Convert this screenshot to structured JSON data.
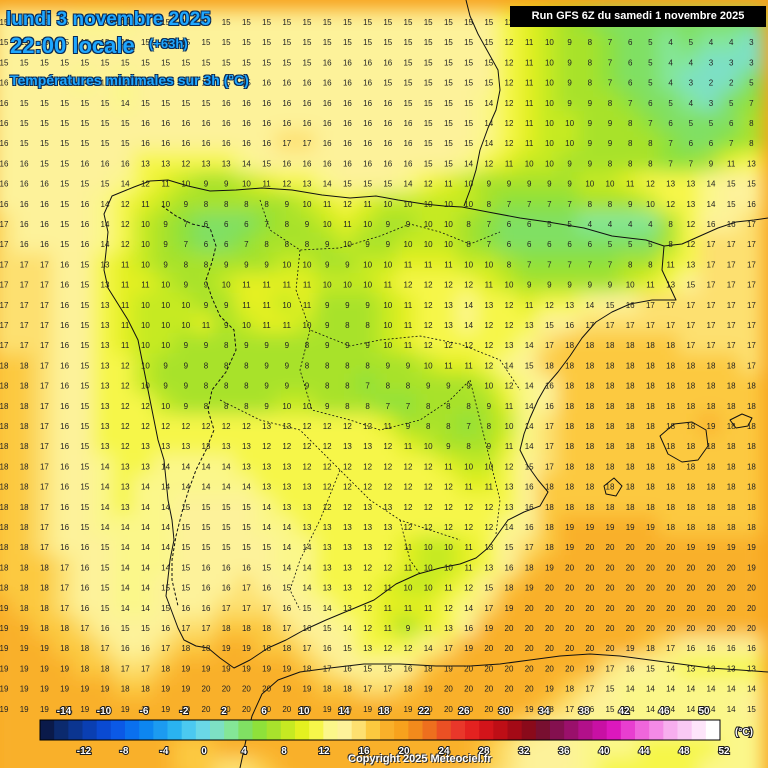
{
  "header": {
    "date": "lundi 3 novembre 2025",
    "time": "22:00 locale",
    "offset": "(+63h)",
    "parameter": "Températures minimales sur 3h (°C)"
  },
  "run_info": "Run GFS 6Z du samedi 1 novembre 2025",
  "copyright": "Copyright 2025 Meteociel.fr",
  "legend": {
    "unit": "(°C)",
    "top_ticks": [
      "-14",
      "-10",
      "-6",
      "-2",
      "2",
      "6",
      "10",
      "14",
      "18",
      "22",
      "26",
      "30",
      "34",
      "38",
      "42",
      "46",
      "50"
    ],
    "bottom_ticks": [
      "-12",
      "-8",
      "-4",
      "0",
      "4",
      "8",
      "12",
      "16",
      "20",
      "24",
      "28",
      "32",
      "36",
      "40",
      "44",
      "48",
      "52"
    ],
    "colors": [
      "#0a1a4a",
      "#0b2a6e",
      "#0b3590",
      "#0a3fb2",
      "#0a4ad2",
      "#0b59e6",
      "#0a70ee",
      "#0d86f0",
      "#1c9bf0",
      "#2ab3f0",
      "#4bc9f0",
      "#6ad8e6",
      "#7de0c4",
      "#84e697",
      "#80e063",
      "#8ee13a",
      "#a8e22c",
      "#c6ea22",
      "#e4f020",
      "#f6f64a",
      "#fbf78a",
      "#fdf29a",
      "#fde070",
      "#fcc93f",
      "#f9b02a",
      "#f7a21d",
      "#f28a1c",
      "#ee6f1e",
      "#eb5024",
      "#e9372a",
      "#e32220",
      "#d3141a",
      "#be0e16",
      "#a40a16",
      "#8a0a1a",
      "#780f30",
      "#84104f",
      "#9a106b",
      "#b2108a",
      "#c810a4",
      "#dc18bd",
      "#e83ed0",
      "#ef66dc",
      "#f48ae6",
      "#f7aeee",
      "#f9c9f4",
      "#fde5fa",
      "#ffffff"
    ]
  },
  "grid_values": [
    [
      15,
      15,
      15,
      15,
      14,
      14,
      14,
      15,
      15,
      15,
      15,
      15,
      15,
      15,
      15,
      15,
      15,
      15,
      15,
      15,
      15,
      15,
      15,
      15,
      15,
      12,
      11,
      10,
      9,
      7,
      6,
      5,
      5,
      5,
      6,
      5,
      5,
      5
    ],
    [
      15,
      15,
      15,
      15,
      15,
      15,
      15,
      15,
      15,
      15,
      15,
      15,
      15,
      15,
      15,
      15,
      15,
      15,
      15,
      15,
      15,
      15,
      15,
      15,
      15,
      12,
      11,
      10,
      9,
      8,
      7,
      6,
      5,
      4,
      5,
      4,
      4,
      3
    ],
    [
      15,
      15,
      15,
      15,
      15,
      15,
      15,
      15,
      15,
      15,
      15,
      15,
      15,
      15,
      15,
      15,
      16,
      16,
      16,
      16,
      15,
      15,
      15,
      15,
      15,
      12,
      11,
      10,
      9,
      8,
      7,
      6,
      5,
      4,
      4,
      3,
      3,
      3
    ],
    [
      16,
      15,
      15,
      15,
      14,
      15,
      14,
      15,
      15,
      15,
      15,
      15,
      15,
      16,
      16,
      16,
      16,
      16,
      16,
      15,
      15,
      15,
      15,
      15,
      15,
      12,
      11,
      10,
      9,
      8,
      7,
      6,
      5,
      4,
      3,
      2,
      2,
      5
    ],
    [
      16,
      15,
      15,
      15,
      15,
      15,
      14,
      15,
      15,
      15,
      15,
      16,
      16,
      16,
      16,
      16,
      16,
      16,
      16,
      16,
      15,
      15,
      15,
      15,
      14,
      12,
      11,
      10,
      9,
      9,
      8,
      7,
      6,
      5,
      4,
      3,
      5,
      7
    ],
    [
      16,
      15,
      15,
      15,
      15,
      15,
      15,
      16,
      16,
      16,
      16,
      16,
      16,
      16,
      16,
      16,
      16,
      16,
      16,
      16,
      16,
      15,
      15,
      15,
      14,
      12,
      11,
      10,
      10,
      9,
      9,
      8,
      7,
      6,
      5,
      5,
      6,
      8
    ],
    [
      16,
      15,
      15,
      15,
      15,
      15,
      15,
      16,
      16,
      16,
      16,
      16,
      16,
      16,
      17,
      17,
      16,
      16,
      16,
      16,
      16,
      15,
      15,
      15,
      14,
      12,
      11,
      10,
      10,
      9,
      9,
      8,
      8,
      7,
      6,
      6,
      7,
      8
    ],
    [
      16,
      16,
      15,
      15,
      16,
      16,
      16,
      13,
      13,
      12,
      13,
      13,
      14,
      15,
      16,
      16,
      16,
      16,
      16,
      16,
      16,
      15,
      15,
      14,
      12,
      11,
      10,
      10,
      9,
      9,
      8,
      8,
      8,
      7,
      7,
      9,
      11,
      13
    ],
    [
      16,
      16,
      16,
      15,
      15,
      15,
      14,
      12,
      11,
      10,
      9,
      9,
      10,
      11,
      12,
      13,
      14,
      15,
      15,
      15,
      14,
      12,
      11,
      10,
      9,
      9,
      9,
      9,
      9,
      10,
      10,
      11,
      12,
      13,
      13,
      14,
      15,
      15
    ],
    [
      16,
      16,
      16,
      15,
      16,
      14,
      12,
      11,
      10,
      9,
      8,
      8,
      8,
      8,
      9,
      10,
      11,
      12,
      11,
      10,
      10,
      10,
      10,
      10,
      8,
      7,
      7,
      7,
      7,
      8,
      8,
      9,
      10,
      12,
      13,
      14,
      15,
      16
    ],
    [
      17,
      16,
      16,
      15,
      16,
      14,
      12,
      10,
      9,
      7,
      6,
      6,
      6,
      7,
      8,
      9,
      10,
      11,
      10,
      9,
      9,
      10,
      10,
      8,
      7,
      6,
      6,
      5,
      5,
      4,
      4,
      4,
      4,
      8,
      12,
      16,
      16,
      17
    ],
    [
      17,
      16,
      16,
      15,
      16,
      14,
      12,
      10,
      9,
      7,
      6,
      6,
      7,
      8,
      8,
      8,
      9,
      10,
      9,
      9,
      10,
      10,
      10,
      8,
      7,
      6,
      6,
      6,
      6,
      6,
      5,
      5,
      5,
      8,
      12,
      17,
      17,
      17
    ],
    [
      17,
      17,
      17,
      16,
      15,
      13,
      11,
      10,
      9,
      8,
      8,
      9,
      9,
      9,
      10,
      10,
      9,
      9,
      10,
      10,
      11,
      11,
      11,
      10,
      10,
      8,
      7,
      7,
      7,
      7,
      7,
      8,
      8,
      11,
      13,
      17,
      17,
      17
    ],
    [
      17,
      17,
      17,
      16,
      15,
      13,
      11,
      11,
      10,
      9,
      9,
      10,
      11,
      11,
      11,
      11,
      10,
      10,
      10,
      11,
      12,
      12,
      12,
      12,
      11,
      10,
      9,
      9,
      9,
      9,
      9,
      10,
      11,
      13,
      15,
      17,
      17,
      17
    ],
    [
      17,
      17,
      17,
      16,
      15,
      13,
      11,
      10,
      10,
      10,
      9,
      9,
      11,
      11,
      10,
      11,
      9,
      9,
      9,
      10,
      11,
      12,
      13,
      14,
      13,
      12,
      11,
      12,
      13,
      14,
      15,
      16,
      17,
      17,
      17,
      17,
      17,
      17
    ],
    [
      17,
      17,
      17,
      16,
      15,
      13,
      11,
      10,
      10,
      10,
      11,
      9,
      10,
      11,
      11,
      10,
      9,
      8,
      8,
      10,
      11,
      12,
      13,
      14,
      12,
      12,
      13,
      15,
      16,
      17,
      17,
      17,
      17,
      17,
      17,
      17,
      17,
      17
    ],
    [
      17,
      17,
      17,
      16,
      15,
      13,
      11,
      10,
      10,
      9,
      9,
      8,
      9,
      9,
      9,
      8,
      9,
      9,
      9,
      10,
      11,
      12,
      12,
      12,
      12,
      13,
      14,
      17,
      18,
      18,
      18,
      18,
      18,
      18,
      17,
      17,
      17,
      17
    ],
    [
      18,
      18,
      17,
      16,
      15,
      13,
      12,
      10,
      9,
      9,
      8,
      8,
      8,
      9,
      9,
      8,
      8,
      8,
      8,
      9,
      9,
      10,
      11,
      11,
      12,
      14,
      15,
      18,
      18,
      18,
      18,
      18,
      18,
      18,
      18,
      18,
      18,
      17
    ],
    [
      18,
      18,
      17,
      16,
      15,
      13,
      12,
      10,
      9,
      9,
      8,
      8,
      8,
      9,
      9,
      9,
      8,
      8,
      7,
      8,
      8,
      9,
      9,
      9,
      10,
      12,
      14,
      16,
      18,
      18,
      18,
      18,
      18,
      18,
      18,
      18,
      18,
      18
    ],
    [
      18,
      18,
      17,
      16,
      15,
      13,
      12,
      12,
      10,
      9,
      8,
      8,
      8,
      9,
      10,
      10,
      9,
      8,
      8,
      7,
      7,
      8,
      8,
      8,
      9,
      11,
      14,
      16,
      18,
      18,
      18,
      18,
      18,
      18,
      18,
      18,
      18,
      18
    ],
    [
      18,
      18,
      17,
      16,
      15,
      13,
      12,
      12,
      12,
      12,
      12,
      12,
      12,
      13,
      13,
      12,
      12,
      12,
      12,
      11,
      9,
      8,
      8,
      7,
      8,
      10,
      14,
      17,
      18,
      18,
      18,
      18,
      18,
      18,
      18,
      19,
      18,
      18
    ],
    [
      18,
      18,
      17,
      16,
      15,
      13,
      12,
      13,
      13,
      13,
      13,
      13,
      13,
      12,
      12,
      12,
      12,
      13,
      13,
      12,
      11,
      10,
      9,
      8,
      9,
      11,
      14,
      17,
      18,
      18,
      18,
      18,
      18,
      18,
      18,
      18,
      18,
      18
    ],
    [
      18,
      18,
      17,
      16,
      15,
      14,
      13,
      13,
      14,
      14,
      14,
      14,
      13,
      13,
      13,
      12,
      12,
      12,
      12,
      12,
      12,
      12,
      11,
      10,
      10,
      12,
      15,
      17,
      18,
      18,
      18,
      18,
      18,
      18,
      18,
      18,
      18,
      18
    ],
    [
      18,
      18,
      17,
      16,
      15,
      14,
      13,
      14,
      14,
      14,
      14,
      14,
      14,
      13,
      13,
      13,
      12,
      12,
      12,
      12,
      12,
      12,
      12,
      11,
      11,
      13,
      16,
      18,
      18,
      18,
      18,
      18,
      18,
      18,
      18,
      18,
      18,
      18
    ],
    [
      18,
      18,
      17,
      16,
      15,
      14,
      13,
      14,
      14,
      15,
      15,
      15,
      15,
      14,
      13,
      13,
      12,
      12,
      13,
      13,
      12,
      12,
      12,
      12,
      12,
      13,
      16,
      18,
      18,
      18,
      18,
      18,
      18,
      18,
      18,
      18,
      18,
      18
    ],
    [
      18,
      18,
      17,
      16,
      15,
      14,
      14,
      14,
      14,
      15,
      15,
      15,
      15,
      14,
      14,
      13,
      13,
      13,
      13,
      13,
      12,
      12,
      12,
      12,
      12,
      14,
      16,
      18,
      19,
      19,
      19,
      19,
      19,
      18,
      18,
      18,
      18,
      18
    ],
    [
      18,
      18,
      17,
      16,
      16,
      15,
      14,
      14,
      14,
      15,
      15,
      15,
      15,
      15,
      14,
      14,
      13,
      13,
      13,
      12,
      11,
      10,
      10,
      11,
      13,
      15,
      17,
      18,
      19,
      20,
      20,
      20,
      20,
      20,
      19,
      19,
      19,
      19
    ],
    [
      18,
      18,
      18,
      17,
      16,
      15,
      14,
      14,
      14,
      15,
      16,
      16,
      16,
      15,
      14,
      14,
      13,
      13,
      12,
      12,
      11,
      10,
      10,
      11,
      13,
      16,
      18,
      19,
      20,
      20,
      20,
      20,
      20,
      20,
      20,
      20,
      20,
      19
    ],
    [
      18,
      18,
      18,
      17,
      16,
      15,
      14,
      14,
      15,
      15,
      16,
      16,
      17,
      16,
      15,
      14,
      13,
      13,
      12,
      11,
      10,
      10,
      11,
      12,
      15,
      18,
      19,
      20,
      20,
      20,
      20,
      20,
      20,
      20,
      20,
      20,
      20,
      20
    ],
    [
      19,
      18,
      18,
      17,
      16,
      15,
      14,
      14,
      15,
      16,
      16,
      17,
      17,
      17,
      16,
      15,
      14,
      13,
      12,
      11,
      11,
      11,
      12,
      14,
      17,
      19,
      20,
      20,
      20,
      20,
      20,
      20,
      20,
      20,
      20,
      20,
      20,
      20
    ],
    [
      19,
      19,
      18,
      18,
      17,
      16,
      15,
      15,
      16,
      17,
      17,
      18,
      18,
      18,
      17,
      16,
      15,
      14,
      12,
      11,
      9,
      11,
      13,
      16,
      19,
      20,
      20,
      20,
      20,
      20,
      20,
      20,
      20,
      20,
      20,
      20,
      20,
      20
    ],
    [
      19,
      19,
      19,
      18,
      18,
      17,
      16,
      16,
      17,
      18,
      18,
      19,
      19,
      18,
      18,
      17,
      16,
      15,
      13,
      12,
      12,
      14,
      17,
      19,
      20,
      20,
      20,
      20,
      20,
      20,
      20,
      19,
      18,
      17,
      16,
      16,
      16,
      16
    ],
    [
      19,
      19,
      19,
      19,
      18,
      18,
      17,
      17,
      18,
      19,
      19,
      19,
      19,
      19,
      19,
      18,
      17,
      16,
      15,
      15,
      16,
      18,
      19,
      20,
      20,
      20,
      20,
      20,
      20,
      19,
      17,
      16,
      15,
      14,
      13,
      13,
      13,
      13
    ],
    [
      19,
      19,
      19,
      19,
      19,
      19,
      18,
      18,
      19,
      19,
      20,
      20,
      20,
      20,
      19,
      19,
      18,
      18,
      17,
      17,
      18,
      19,
      20,
      20,
      20,
      20,
      20,
      19,
      18,
      17,
      15,
      14,
      14,
      14,
      14,
      14,
      14,
      14
    ],
    [
      19,
      19,
      19,
      19,
      19,
      19,
      19,
      19,
      19,
      20,
      20,
      20,
      20,
      20,
      20,
      20,
      19,
      19,
      19,
      19,
      19,
      20,
      20,
      20,
      20,
      20,
      19,
      18,
      17,
      16,
      15,
      14,
      14,
      14,
      14,
      14,
      14,
      15
    ],
    [
      20,
      20,
      20,
      19,
      19,
      19,
      19,
      19,
      19,
      19,
      20,
      20,
      20,
      20,
      20,
      20,
      20,
      20,
      20,
      20,
      20,
      20,
      20,
      20,
      19,
      18,
      17,
      16,
      15,
      14,
      14,
      14,
      14,
      14,
      14,
      14,
      14,
      14
    ],
    [
      20,
      20,
      20,
      20,
      19,
      19,
      19,
      19,
      19,
      18,
      18,
      19,
      19,
      20,
      20,
      20,
      20,
      20,
      20,
      20,
      20,
      20,
      20,
      19,
      18,
      17,
      16,
      15,
      15,
      14,
      14,
      14,
      13,
      13,
      13,
      13,
      14,
      14
    ],
    [
      20,
      20,
      20,
      20,
      20,
      20,
      20,
      20,
      20,
      18,
      18,
      17,
      17,
      18,
      19,
      20,
      20,
      20,
      20,
      20,
      20,
      20,
      20,
      19,
      18,
      17,
      16,
      15,
      15,
      14,
      13,
      13,
      13,
      13,
      13,
      14,
      14,
      14
    ],
    [
      20,
      20,
      20,
      20,
      20,
      20,
      20,
      20,
      20,
      19,
      18,
      17,
      17,
      17,
      18,
      19,
      19,
      19,
      19,
      19,
      18,
      17,
      17,
      16,
      16,
      15,
      15,
      15,
      14,
      14,
      13,
      13,
      13,
      13,
      13,
      14,
      14,
      14
    ]
  ]
}
